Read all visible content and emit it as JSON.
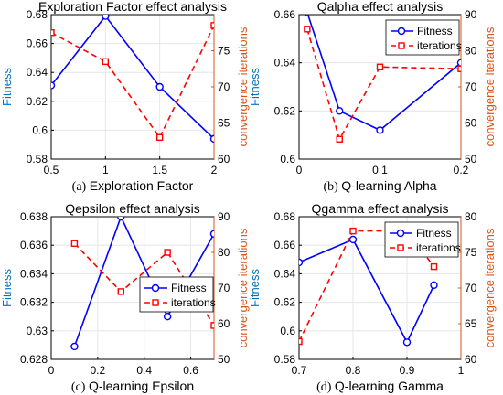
{
  "chart_data": [
    {
      "type": "line",
      "title": "Exploration Factor effect analysis",
      "caption_prefix": "(a)",
      "caption": "Exploration Factor",
      "xlim": [
        0.5,
        2
      ],
      "xticks": [
        "0.5",
        "1",
        "1.5",
        "2"
      ],
      "ylabel_left": "Fitness",
      "ylim_left": [
        0.58,
        0.68
      ],
      "yticks_left": [
        "0.58",
        "0.6",
        "0.62",
        "0.64",
        "0.66",
        "0.68"
      ],
      "ylabel_right": "convergence iterations",
      "ylim_right": [
        60,
        80
      ],
      "yticks_right": [
        "60",
        "65",
        "70",
        "75"
      ],
      "grid": true,
      "legend": false,
      "series": [
        {
          "name": "Fitness",
          "axis": "left",
          "color": "#0000FF",
          "marker": "circle",
          "x": [
            0.5,
            1,
            1.5,
            2
          ],
          "values": [
            0.631,
            0.679,
            0.63,
            0.594
          ]
        },
        {
          "name": "iterations",
          "axis": "right",
          "color": "#FF0000",
          "marker": "square",
          "x": [
            0.5,
            1,
            1.5,
            2
          ],
          "values": [
            77.5,
            73.5,
            63,
            78.5
          ]
        }
      ]
    },
    {
      "type": "line",
      "title": "Qalpha effect analysis",
      "caption_prefix": "(b)",
      "caption": "Q-learning Alpha",
      "xlim": [
        0,
        0.2
      ],
      "xticks": [
        "0",
        "0.1",
        "0.2"
      ],
      "ylabel_left": "Fitness",
      "ylim_left": [
        0.6,
        0.66
      ],
      "yticks_left": [
        "0.6",
        "0.62",
        "0.64",
        "0.66"
      ],
      "ylabel_right": "convergence iterations",
      "ylim_right": [
        50,
        90
      ],
      "yticks_right": [
        "50",
        "60",
        "70",
        "80",
        "90"
      ],
      "grid": true,
      "legend": true,
      "legend_position": "top-right",
      "series": [
        {
          "name": "Fitness",
          "axis": "left",
          "color": "#0000FF",
          "marker": "circle",
          "x": [
            0.01,
            0.05,
            0.1,
            0.2
          ],
          "values": [
            0.661,
            0.62,
            0.612,
            0.64
          ]
        },
        {
          "name": "iterations",
          "axis": "right",
          "color": "#FF0000",
          "marker": "square",
          "x": [
            0.01,
            0.05,
            0.1,
            0.2
          ],
          "values": [
            86,
            55.5,
            75.5,
            75
          ]
        }
      ]
    },
    {
      "type": "line",
      "title": "Qepsilon effect analysis",
      "caption_prefix": "(c)",
      "caption": "Q-learning Epsilon",
      "xlim": [
        0,
        0.7
      ],
      "xticks": [
        "0",
        "0.2",
        "0.4",
        "0.6"
      ],
      "ylabel_left": "Fitness",
      "ylim_left": [
        0.628,
        0.638
      ],
      "yticks_left": [
        "0.628",
        "0.63",
        "0.632",
        "0.634",
        "0.636",
        "0.638"
      ],
      "ylabel_right": "convergence iterations",
      "ylim_right": [
        50,
        90
      ],
      "yticks_right": [
        "50",
        "60",
        "70",
        "80",
        "90"
      ],
      "grid": true,
      "legend": true,
      "legend_position": "center-right",
      "series": [
        {
          "name": "Fitness",
          "axis": "left",
          "color": "#0000FF",
          "marker": "circle",
          "x": [
            0.1,
            0.3,
            0.5,
            0.7
          ],
          "values": [
            0.6289,
            0.638,
            0.631,
            0.6368
          ]
        },
        {
          "name": "iterations",
          "axis": "right",
          "color": "#FF0000",
          "marker": "square",
          "x": [
            0.1,
            0.3,
            0.5,
            0.7
          ],
          "values": [
            82.5,
            69,
            80,
            59.5
          ]
        }
      ]
    },
    {
      "type": "line",
      "title": "Qgamma effect analysis",
      "caption_prefix": "(d)",
      "caption": "Q-learning Gamma",
      "xlim": [
        0.7,
        1
      ],
      "xticks": [
        "0.7",
        "0.8",
        "0.9",
        "1"
      ],
      "ylabel_left": "Fitness",
      "ylim_left": [
        0.58,
        0.68
      ],
      "yticks_left": [
        "0.58",
        "0.6",
        "0.62",
        "0.64",
        "0.66",
        "0.68"
      ],
      "ylabel_right": "convergence iterations",
      "ylim_right": [
        60,
        80
      ],
      "yticks_right": [
        "60",
        "65",
        "70",
        "75",
        "80"
      ],
      "grid": true,
      "legend": true,
      "legend_position": "top-right",
      "series": [
        {
          "name": "Fitness",
          "axis": "left",
          "color": "#0000FF",
          "marker": "circle",
          "x": [
            0.7,
            0.8,
            0.9,
            0.95
          ],
          "values": [
            0.648,
            0.664,
            0.592,
            0.632
          ]
        },
        {
          "name": "iterations",
          "axis": "right",
          "color": "#FF0000",
          "marker": "square",
          "x": [
            0.7,
            0.8,
            0.9,
            0.95
          ],
          "values": [
            62.5,
            78,
            78,
            73
          ]
        }
      ]
    }
  ]
}
